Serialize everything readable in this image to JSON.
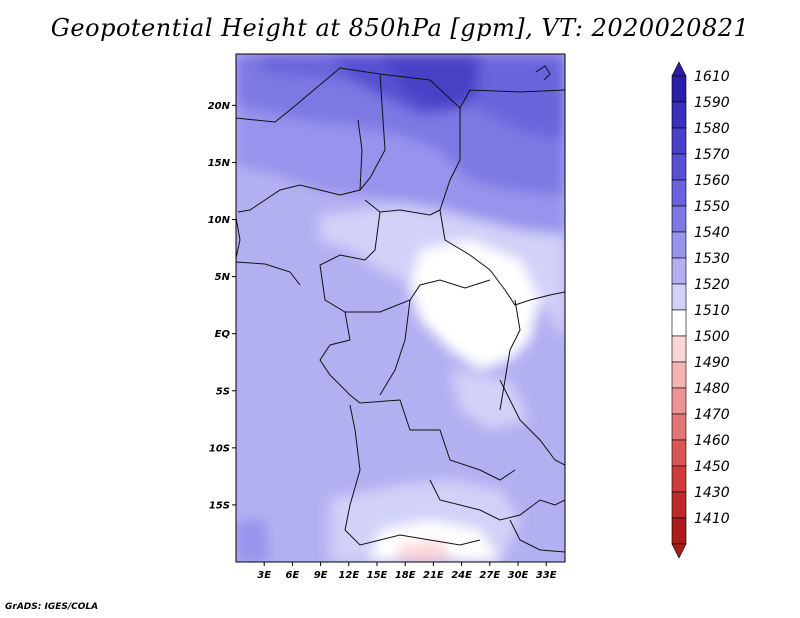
{
  "title": "Geopotential Height at 850hPa [gpm], VT: 2020020821",
  "footer": "GrADS: IGES/COLA",
  "map": {
    "lat_labels": [
      "20N",
      "15N",
      "10N",
      "5N",
      "EQ",
      "5S",
      "10S",
      "15S"
    ],
    "lat_values": [
      20,
      15,
      10,
      5,
      0,
      -5,
      -10,
      -15
    ],
    "lon_labels": [
      "3E",
      "6E",
      "9E",
      "12E",
      "15E",
      "18E",
      "21E",
      "24E",
      "27E",
      "30E",
      "33E"
    ],
    "lon_values": [
      3,
      6,
      9,
      12,
      15,
      18,
      21,
      24,
      27,
      30,
      33
    ],
    "lon_range": [
      0,
      35
    ],
    "lat_range": [
      -20,
      24.5
    ]
  },
  "colorbar": {
    "labels": [
      "1610",
      "1590",
      "1580",
      "1570",
      "1560",
      "1550",
      "1540",
      "1530",
      "1520",
      "1510",
      "1500",
      "1490",
      "1480",
      "1470",
      "1460",
      "1450",
      "1430",
      "1410"
    ],
    "colors": [
      "#2b1ea6",
      "#3a2fb8",
      "#4840c6",
      "#5850d2",
      "#6a63dc",
      "#7e78e4",
      "#9893ec",
      "#b3b0f2",
      "#d2d1f8",
      "#ffffff",
      "#fbd6d6",
      "#f4b4b4",
      "#ec9494",
      "#e27575",
      "#d85656",
      "#cc3c3c",
      "#bd2a2a",
      "#a81c1c"
    ]
  }
}
